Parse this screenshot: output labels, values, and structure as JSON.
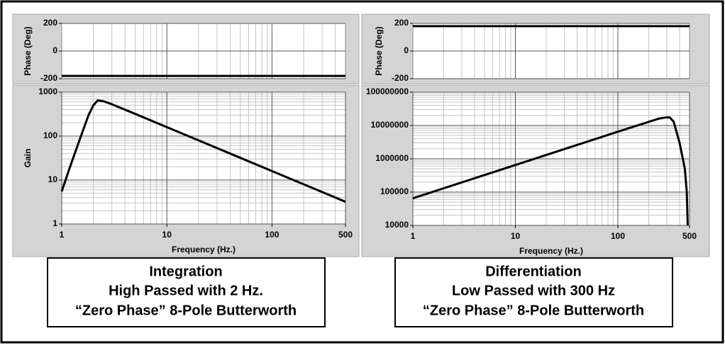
{
  "chart_data": [
    {
      "type": "line",
      "ylabel": "Phase (Deg)",
      "log_x": true,
      "xlim": [
        1,
        500
      ],
      "ylim": [
        -200,
        200
      ],
      "yticks": [
        -200,
        0,
        200
      ],
      "series": [
        {
          "color": "#000000",
          "x": [
            1,
            500
          ],
          "values": [
            -180,
            -180
          ]
        }
      ]
    },
    {
      "type": "line",
      "ylabel": "Gain",
      "xlabel": "Frequency (Hz.)",
      "log_x": true,
      "log_y": true,
      "xlim": [
        1,
        500
      ],
      "ylim": [
        1,
        1000
      ],
      "xticks": [
        1,
        10,
        100,
        500
      ],
      "yticks": [
        1,
        10,
        100,
        1000
      ],
      "series": [
        {
          "color": "#000000",
          "x": [
            1,
            1.2,
            1.5,
            1.8,
            2,
            2.2,
            2.5,
            3,
            5,
            10,
            20,
            50,
            100,
            200,
            500
          ],
          "values": [
            5.5,
            20,
            90,
            300,
            500,
            650,
            620,
            530,
            320,
            160,
            80,
            32,
            16,
            8,
            3.2
          ]
        }
      ]
    },
    {
      "type": "line",
      "ylabel": "Phase (Deg)",
      "log_x": true,
      "xlim": [
        1,
        500
      ],
      "ylim": [
        -200,
        200
      ],
      "yticks": [
        -200,
        0,
        200
      ],
      "series": [
        {
          "color": "#000000",
          "x": [
            1,
            500
          ],
          "values": [
            180,
            180
          ]
        }
      ]
    },
    {
      "type": "line",
      "xlabel": "Frequency (Hz.)",
      "log_x": true,
      "log_y": true,
      "xlim": [
        1,
        500
      ],
      "ylim": [
        10000,
        100000000
      ],
      "xticks": [
        1,
        10,
        100,
        500
      ],
      "yticks": [
        10000,
        100000,
        1000000,
        10000000,
        100000000
      ],
      "series": [
        {
          "color": "#000000",
          "x": [
            1,
            10,
            100,
            250,
            300,
            320,
            350,
            400,
            450,
            470,
            480
          ],
          "values": [
            65000,
            650000,
            6500000,
            16000000,
            17500000,
            17500000,
            13000000,
            3000000,
            500000,
            100000,
            10000
          ]
        }
      ]
    }
  ],
  "captions": [
    [
      "Integration",
      "High Passed with 2 Hz.",
      "“Zero Phase” 8-Pole Butterworth"
    ],
    [
      "Differentiation",
      "Low Passed with 300 Hz",
      "“Zero Phase” 8-Pole Butterworth"
    ]
  ]
}
